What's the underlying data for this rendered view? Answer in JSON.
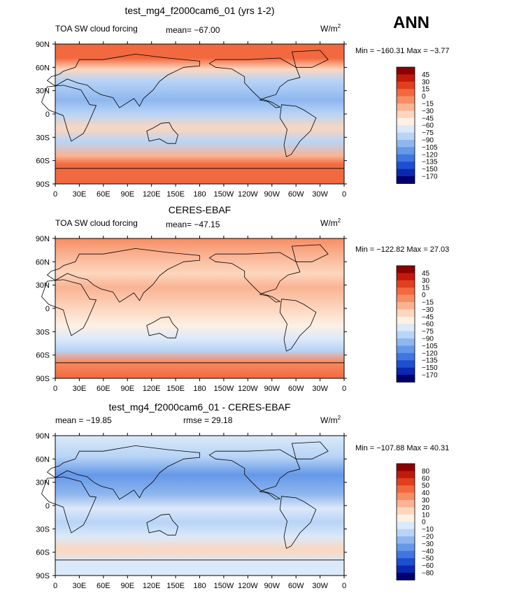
{
  "season": "ANN",
  "unit_label": "W/m",
  "unit_exp": "2",
  "x_ticks": [
    "0",
    "30E",
    "60E",
    "90E",
    "120E",
    "150E",
    "180",
    "150W",
    "120W",
    "90W",
    "60W",
    "30W",
    "0"
  ],
  "y_ticks": [
    "90N",
    "60N",
    "30N",
    "0",
    "30S",
    "60S",
    "90S"
  ],
  "chart_data": [
    {
      "type": "heatmap",
      "title": "test_mg4_f2000cam6_01 (yrs 1-2)",
      "subtitle": "TOA SW cloud forcing",
      "stats_text": "mean= -67.00",
      "minmax_text": "Min = -160.31 Max = -3.77",
      "min": -160.31,
      "max": -3.77,
      "mean": -67.0,
      "colorbar_levels": [
        "45",
        "30",
        "15",
        "0",
        "-15",
        "-30",
        "-45",
        "-60",
        "-75",
        "-90",
        "-105",
        "-120",
        "-135",
        "-150",
        "-170"
      ],
      "colorbar_colors": [
        "#8b0000",
        "#c21a0a",
        "#e0401f",
        "#f2693f",
        "#f78d63",
        "#fab393",
        "#fcd6be",
        "#fdf0e4",
        "#dbe9f9",
        "#b8d4f6",
        "#8fb7ef",
        "#6598e8",
        "#3f76e0",
        "#1d4fd0",
        "#0a28b0",
        "#00006e"
      ],
      "xlim": [
        0,
        360
      ],
      "ylim": [
        -90,
        90
      ]
    },
    {
      "type": "heatmap",
      "title": "CERES-EBAF",
      "subtitle": "TOA SW cloud forcing",
      "stats_text": "mean= -47.15",
      "minmax_text": "Min = -122.82 Max = 27.03",
      "min": -122.82,
      "max": 27.03,
      "mean": -47.15,
      "colorbar_levels": [
        "45",
        "30",
        "15",
        "0",
        "-15",
        "-30",
        "-45",
        "-60",
        "-75",
        "-90",
        "-105",
        "-120",
        "-135",
        "-150",
        "-170"
      ],
      "colorbar_colors": [
        "#8b0000",
        "#c21a0a",
        "#e0401f",
        "#f2693f",
        "#f78d63",
        "#fab393",
        "#fcd6be",
        "#fdf0e4",
        "#dbe9f9",
        "#b8d4f6",
        "#8fb7ef",
        "#6598e8",
        "#3f76e0",
        "#1d4fd0",
        "#0a28b0",
        "#00006e"
      ],
      "xlim": [
        0,
        360
      ],
      "ylim": [
        -90,
        90
      ]
    },
    {
      "type": "heatmap",
      "title": "test_mg4_f2000cam6_01 - CERES-EBAF",
      "stats_text": "mean = -19.85",
      "rmse_text": "rmse = 29.18",
      "minmax_text": "Min = -107.88 Max = 40.31",
      "min": -107.88,
      "max": 40.31,
      "mean": -19.85,
      "rmse": 29.18,
      "colorbar_levels": [
        "80",
        "60",
        "50",
        "40",
        "30",
        "20",
        "10",
        "0",
        "-10",
        "-20",
        "-30",
        "-40",
        "-50",
        "-60",
        "-80"
      ],
      "colorbar_colors": [
        "#8b0000",
        "#c21a0a",
        "#e0401f",
        "#f2693f",
        "#f78d63",
        "#fab393",
        "#fcd6be",
        "#fdf0e4",
        "#dbe9f9",
        "#b8d4f6",
        "#8fb7ef",
        "#6598e8",
        "#3f76e0",
        "#1d4fd0",
        "#0a28b0",
        "#00006e"
      ],
      "xlim": [
        0,
        360
      ],
      "ylim": [
        -90,
        90
      ]
    }
  ]
}
